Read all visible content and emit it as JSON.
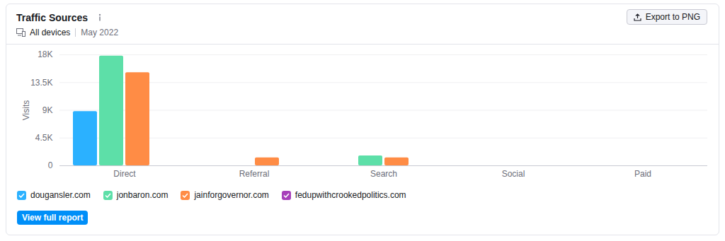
{
  "chart_data": {
    "type": "bar",
    "title": "Traffic Sources",
    "subtitle": "May 2022",
    "annotations": [
      "All devices",
      "Export to PNG",
      "View full report"
    ],
    "y_label": "Visits",
    "categories": [
      "Direct",
      "Referral",
      "Search",
      "Social",
      "Paid"
    ],
    "series": [
      {
        "name": "dougansler.com",
        "color": "#2bb1ff",
        "values": [
          8800,
          0,
          0,
          0,
          0
        ]
      },
      {
        "name": "jonbaron.com",
        "color": "#5ddfa8",
        "values": [
          17800,
          0,
          1600,
          0,
          0
        ]
      },
      {
        "name": "jainforgovernor.com",
        "color": "#ff8c45",
        "values": [
          15100,
          1300,
          1300,
          0,
          0
        ]
      },
      {
        "name": "fedupwithcrookedpolitics.com",
        "color": "#a73fba",
        "values": [
          0,
          0,
          0,
          0,
          0
        ]
      }
    ],
    "ylim": [
      0,
      18000
    ],
    "yticks": [
      0,
      {
        "value": 4500,
        "label": "4.5K"
      },
      {
        "value": 9000,
        "label": "9K"
      },
      {
        "value": 13500,
        "label": "13.5K"
      },
      {
        "value": 18000,
        "label": "18K"
      }
    ],
    "grid": true,
    "legend": "bottom"
  }
}
